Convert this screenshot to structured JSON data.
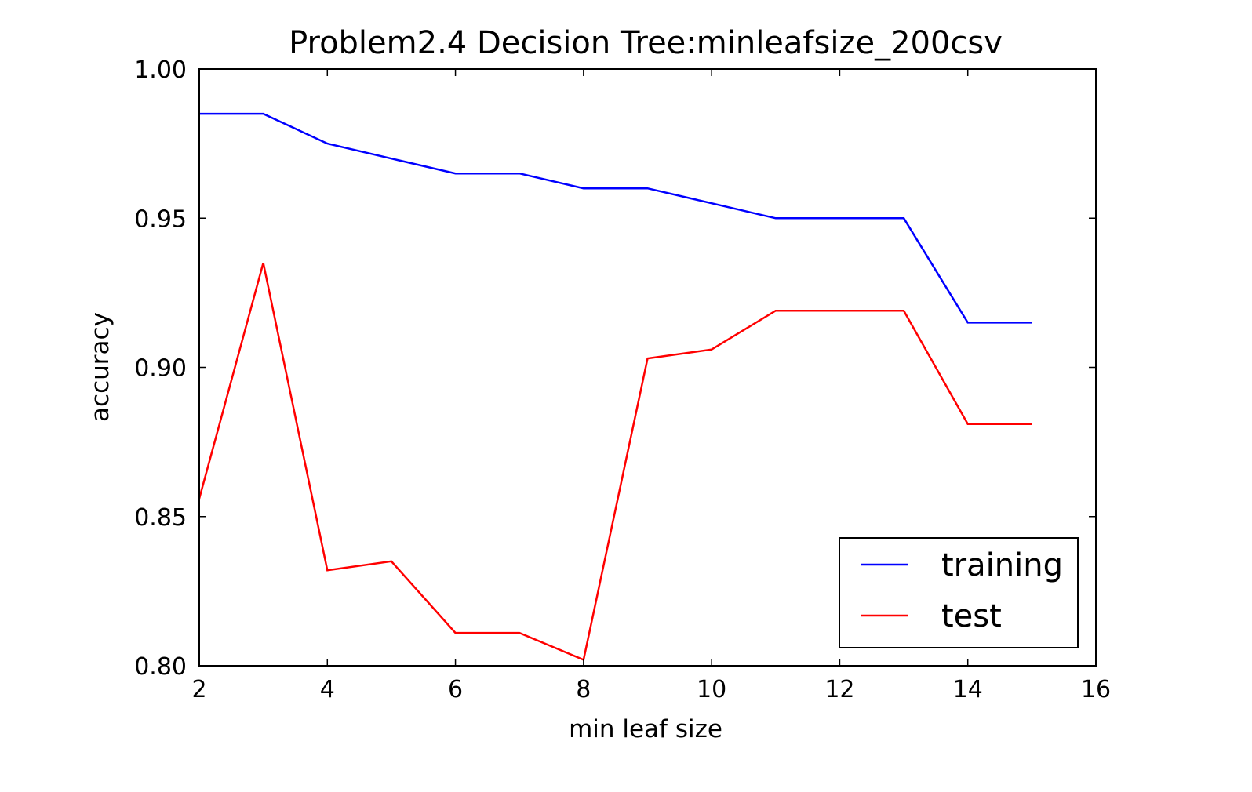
{
  "chart_data": {
    "type": "line",
    "title": "Problem2.4 Decision Tree:minleafsize_200csv",
    "xlabel": "min leaf size",
    "ylabel": "accuracy",
    "xlim": [
      2,
      16
    ],
    "ylim": [
      0.8,
      1.0
    ],
    "xticks": [
      2,
      4,
      6,
      8,
      10,
      12,
      14,
      16
    ],
    "xtick_labels": [
      "2",
      "4",
      "6",
      "8",
      "10",
      "12",
      "14",
      "16"
    ],
    "yticks": [
      0.8,
      0.85,
      0.9,
      0.95,
      1.0
    ],
    "ytick_labels": [
      "0.80",
      "0.85",
      "0.90",
      "0.95",
      "1.00"
    ],
    "grid": false,
    "legend_position": "lower-right",
    "x": [
      2,
      3,
      4,
      5,
      6,
      7,
      8,
      9,
      10,
      11,
      12,
      13,
      14,
      15
    ],
    "series": [
      {
        "name": "training",
        "color": "#0000ff",
        "values": [
          0.985,
          0.985,
          0.975,
          0.97,
          0.965,
          0.965,
          0.96,
          0.96,
          0.955,
          0.95,
          0.95,
          0.95,
          0.915,
          0.915
        ]
      },
      {
        "name": "test",
        "color": "#ff0000",
        "values": [
          0.856,
          0.935,
          0.832,
          0.835,
          0.811,
          0.811,
          0.802,
          0.903,
          0.906,
          0.919,
          0.919,
          0.919,
          0.881,
          0.881
        ]
      }
    ]
  }
}
